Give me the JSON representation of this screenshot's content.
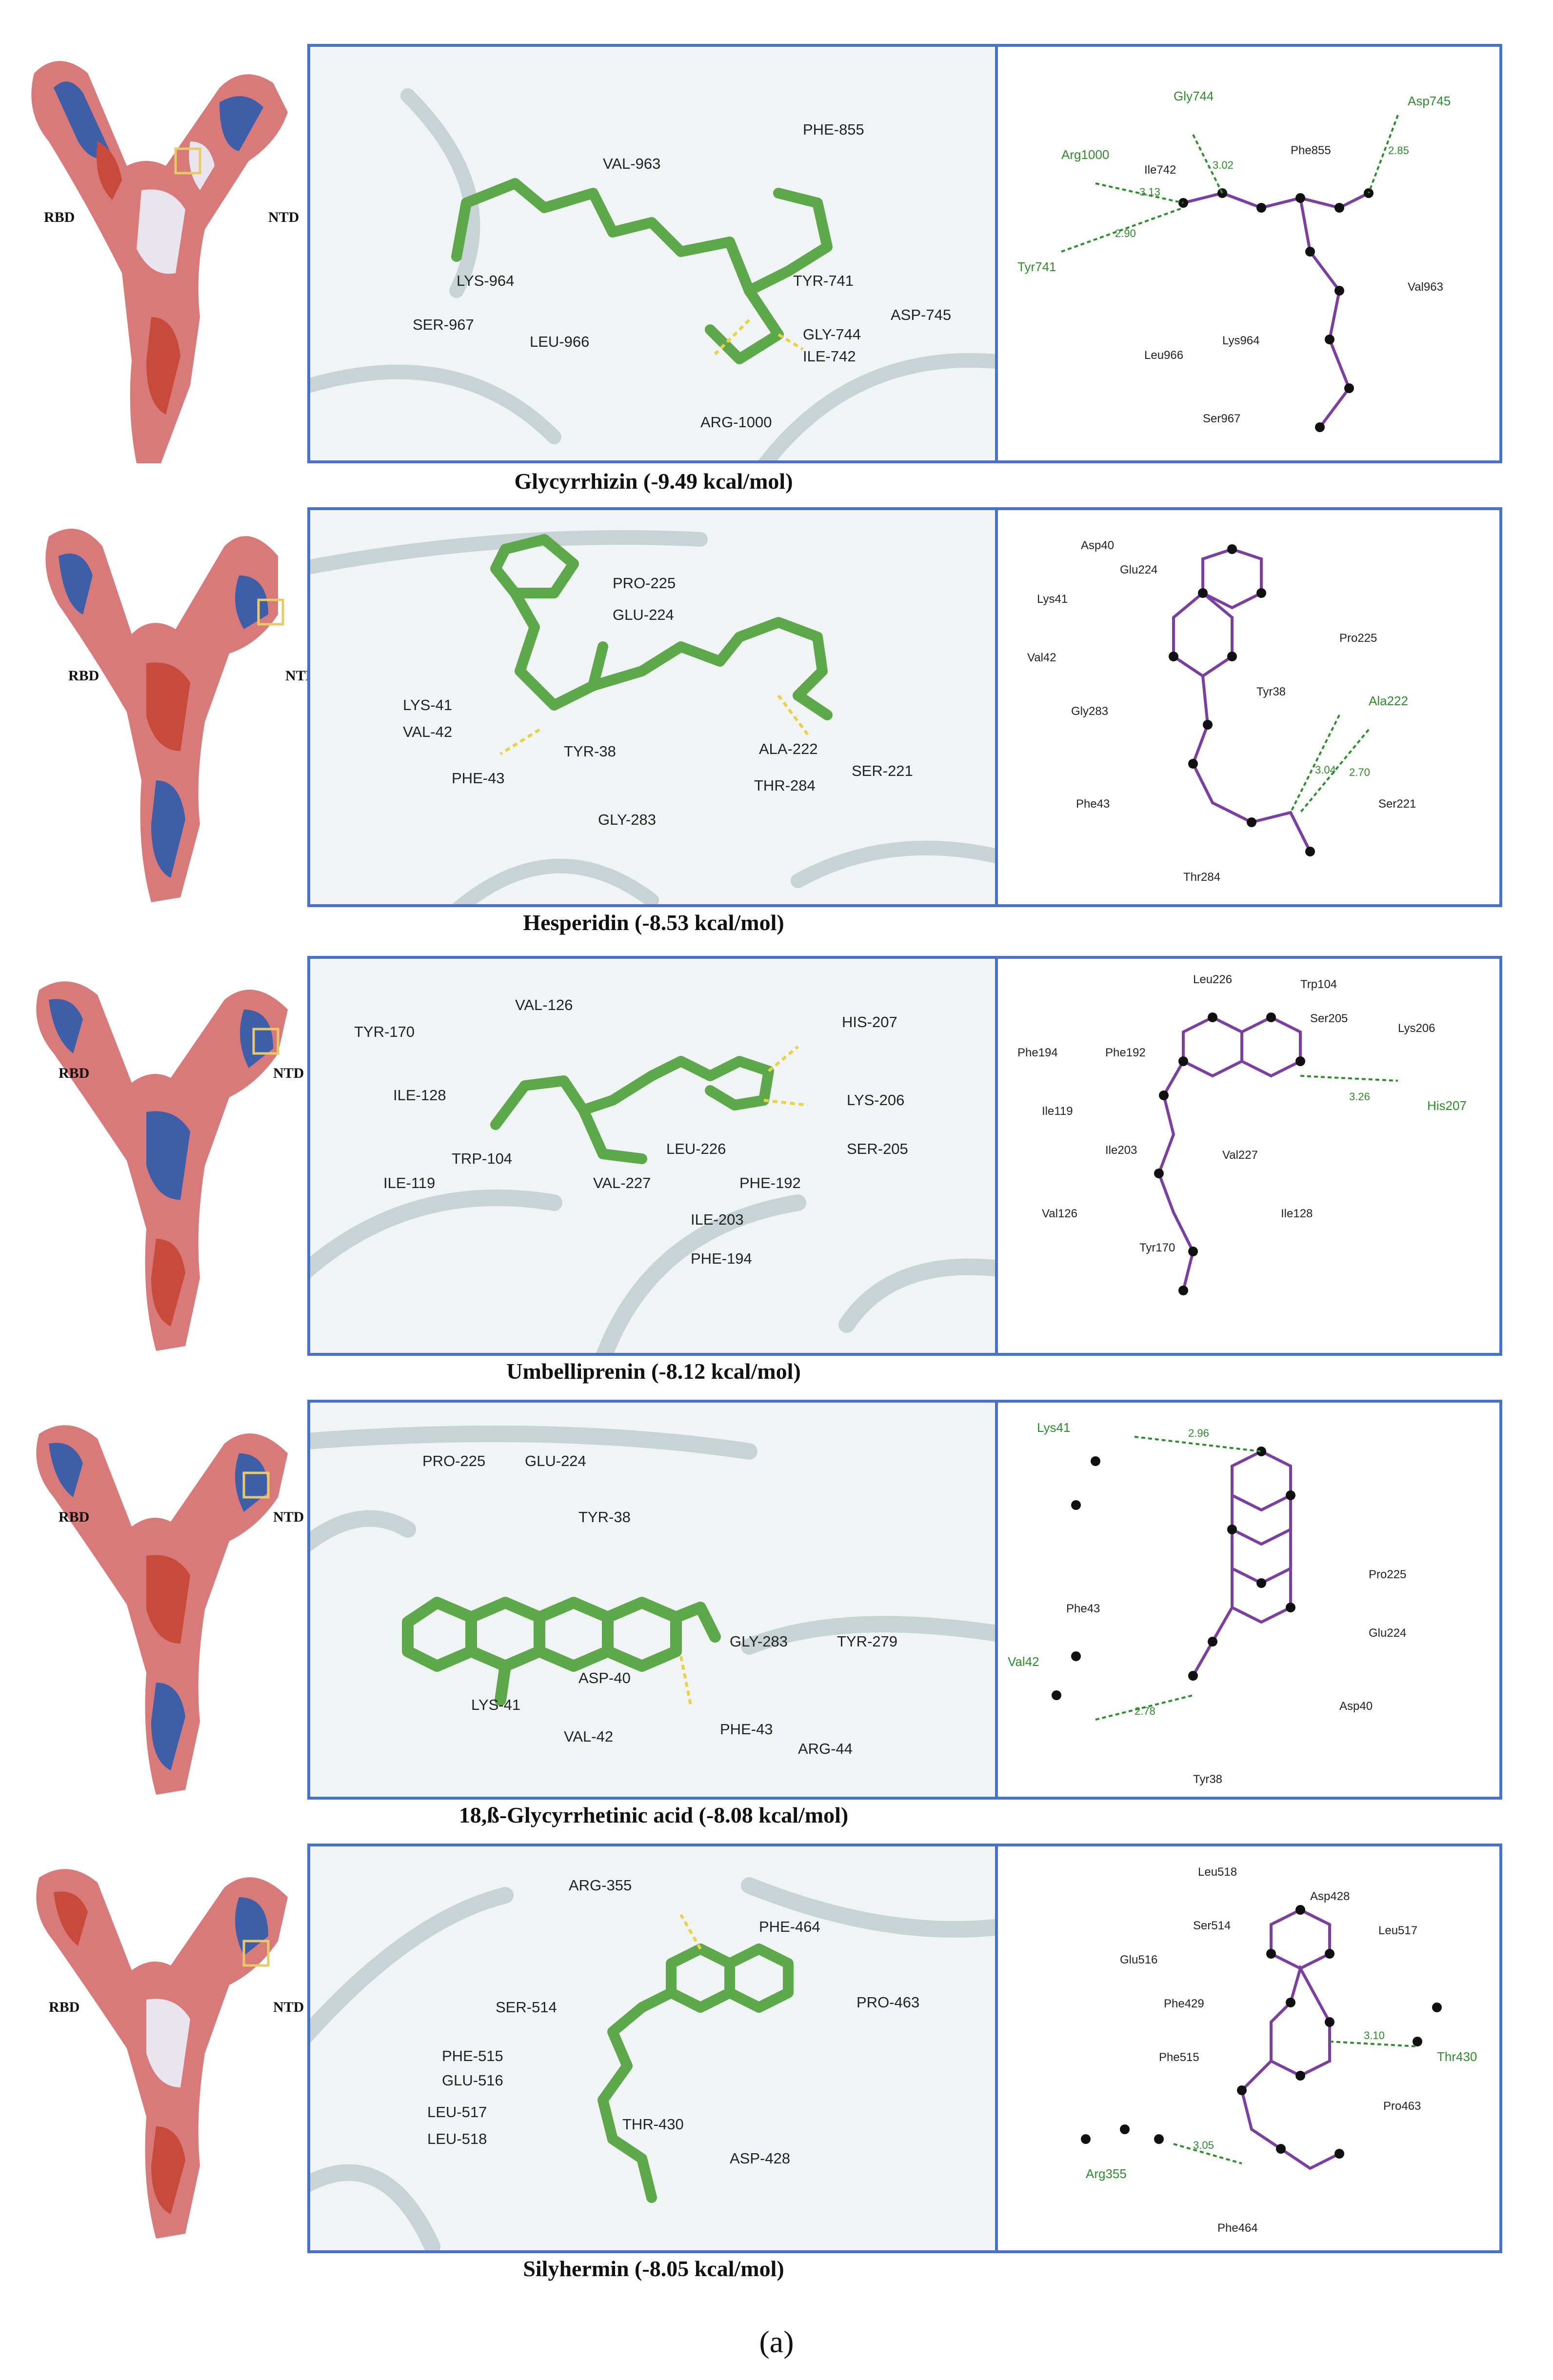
{
  "complexes": [
    {
      "name": "Glycyrrhizin (-9.49 kcal/mol)",
      "region_left": "RBD",
      "region_right": "NTD",
      "residues_3d": [
        "VAL-963",
        "PHE-855",
        "LYS-964",
        "SER-967",
        "LEU-966",
        "TYR-741",
        "ASP-745",
        "GLY-744",
        "ILE-742",
        "ARG-1000"
      ],
      "hbond_residues": [
        "Gly744",
        "Asp745",
        "Arg1000",
        "Tyr741"
      ],
      "hydrophobic_residues": [
        "Ile742",
        "Phe855",
        "Val963",
        "Leu966",
        "Lys964",
        "Ser967"
      ],
      "distances": [
        "3.02",
        "2.85",
        "3.13",
        "2.90"
      ]
    },
    {
      "name": "Hesperidin (-8.53 kcal/mol)",
      "region_left": "RBD",
      "region_right": "NTD",
      "residues_3d": [
        "PRO-225",
        "GLU-224",
        "LYS-41",
        "VAL-42",
        "TYR-38",
        "ALA-222",
        "SER-221",
        "PHE-43",
        "THR-284",
        "GLY-283"
      ],
      "hbond_residues": [
        "Ala222"
      ],
      "hydrophobic_residues": [
        "Asp40",
        "Glu224",
        "Lys41",
        "Pro225",
        "Val42",
        "Tyr38",
        "Gly283",
        "Phe43",
        "Ser221",
        "Thr284"
      ],
      "distances": [
        "3.04",
        "2.70"
      ]
    },
    {
      "name": "Umbelliprenin (-8.12 kcal/mol)",
      "region_left": "RBD",
      "region_right": "NTD",
      "residues_3d": [
        "VAL-126",
        "TYR-170",
        "HIS-207",
        "ILE-128",
        "LYS-206",
        "TRP-104",
        "LEU-226",
        "SER-205",
        "ILE-119",
        "VAL-227",
        "PHE-192",
        "ILE-203",
        "PHE-194"
      ],
      "hbond_residues": [
        "His207"
      ],
      "hydrophobic_residues": [
        "Leu226",
        "Trp104",
        "Ser205",
        "Lys206",
        "Phe194",
        "Phe192",
        "Ile119",
        "Ile203",
        "Val227",
        "Val126",
        "Ile128",
        "Tyr170"
      ],
      "distances": [
        "3.26"
      ]
    },
    {
      "name": "18,ß-Glycyrrhetinic acid (-8.08 kcal/mol)",
      "region_left": "RBD",
      "region_right": "NTD",
      "residues_3d": [
        "PRO-225",
        "GLU-224",
        "TYR-38",
        "GLY-283",
        "TYR-279",
        "ASP-40",
        "LYS-41",
        "VAL-42",
        "PHE-43",
        "ARG-44"
      ],
      "hbond_residues": [
        "Lys41",
        "Val42"
      ],
      "hydrophobic_residues": [
        "Phe43",
        "Pro225",
        "Glu224",
        "Asp40",
        "Tyr38"
      ],
      "distances": [
        "2.96",
        "2.78"
      ]
    },
    {
      "name": "Silyhermin (-8.05 kcal/mol)",
      "region_left": "RBD",
      "region_right": "NTD",
      "residues_3d": [
        "ARG-355",
        "PHE-464",
        "SER-514",
        "PRO-463",
        "PHE-515",
        "GLU-516",
        "LEU-517",
        "THR-430",
        "LEU-518",
        "ASP-428"
      ],
      "hbond_residues": [
        "Thr430",
        "Arg355"
      ],
      "hydrophobic_residues": [
        "Leu518",
        "Asp428",
        "Ser514",
        "Leu517",
        "Glu516",
        "Phe429",
        "Phe515",
        "Pro463",
        "Phe464"
      ],
      "distances": [
        "3.10",
        "3.05"
      ]
    }
  ],
  "figure_label": "(a)",
  "colors": {
    "frame": "#4a72c4",
    "ligand": "#5ca84a",
    "hbond": "#2e8b2e",
    "hydrophobic": "#c0392b"
  }
}
